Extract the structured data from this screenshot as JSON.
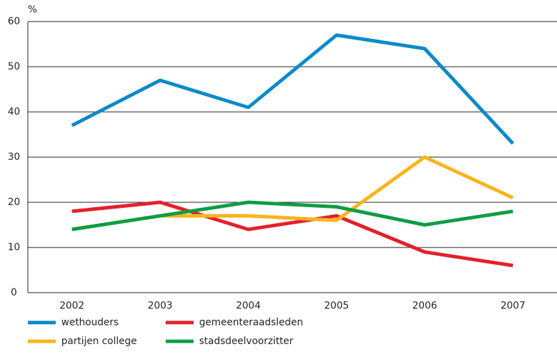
{
  "chart_data": {
    "type": "line",
    "y_label": "%",
    "categories": [
      "2002",
      "2003",
      "2004",
      "2005",
      "2006",
      "2007"
    ],
    "series": [
      {
        "name": "wethouders",
        "color": "#0a8ac9",
        "values": [
          37,
          47,
          41,
          57,
          54,
          33
        ]
      },
      {
        "name": "gemeenteraadsleden",
        "color": "#e4202a",
        "values": [
          18,
          20,
          14,
          17,
          9,
          6
        ]
      },
      {
        "name": "partijen college",
        "color": "#fbb41c",
        "values": [
          14,
          17,
          17,
          16,
          30,
          21
        ]
      },
      {
        "name": "stadsdeelvoorzitter",
        "color": "#109c44",
        "values": [
          14,
          17,
          20,
          19,
          15,
          18
        ]
      }
    ],
    "ylim": [
      0,
      60
    ],
    "yticks": [
      0,
      10,
      20,
      30,
      40,
      50,
      60
    ],
    "grid": true
  }
}
